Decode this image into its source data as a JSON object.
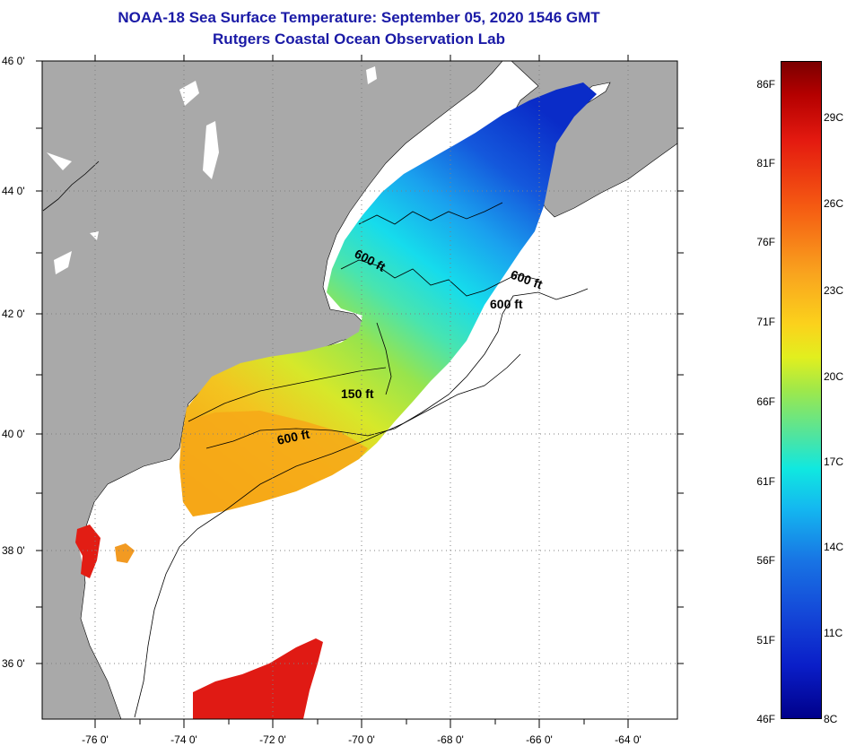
{
  "title_line1": "NOAA-18 Sea Surface Temperature:  September 05, 2020 1546 GMT",
  "title_line2": "Rutgers Coastal Ocean Observation Lab",
  "lat_labels": [
    "46 0'",
    "44 0'",
    "42 0'",
    "40 0'",
    "38 0'",
    "36 0'"
  ],
  "lon_labels": [
    "-76 0'",
    "-74 0'",
    "-72 0'",
    "-70 0'",
    "-68 0'",
    "-66 0'",
    "-64 0'"
  ],
  "contour_labels": [
    "600 ft",
    "600 ft",
    "600 ft",
    "150 ft",
    "600 ft"
  ],
  "colorbar": {
    "fahrenheit": [
      "86F",
      "81F",
      "76F",
      "71F",
      "66F",
      "61F",
      "56F",
      "51F",
      "46F"
    ],
    "celsius": [
      "29C",
      "26C",
      "23C",
      "20C",
      "17C",
      "14C",
      "11C",
      "8C"
    ]
  },
  "colors": {
    "land": "#a9a9a9",
    "water_nodata": "#ffffff",
    "title": "#1a1aa6",
    "grid": "#808080"
  }
}
